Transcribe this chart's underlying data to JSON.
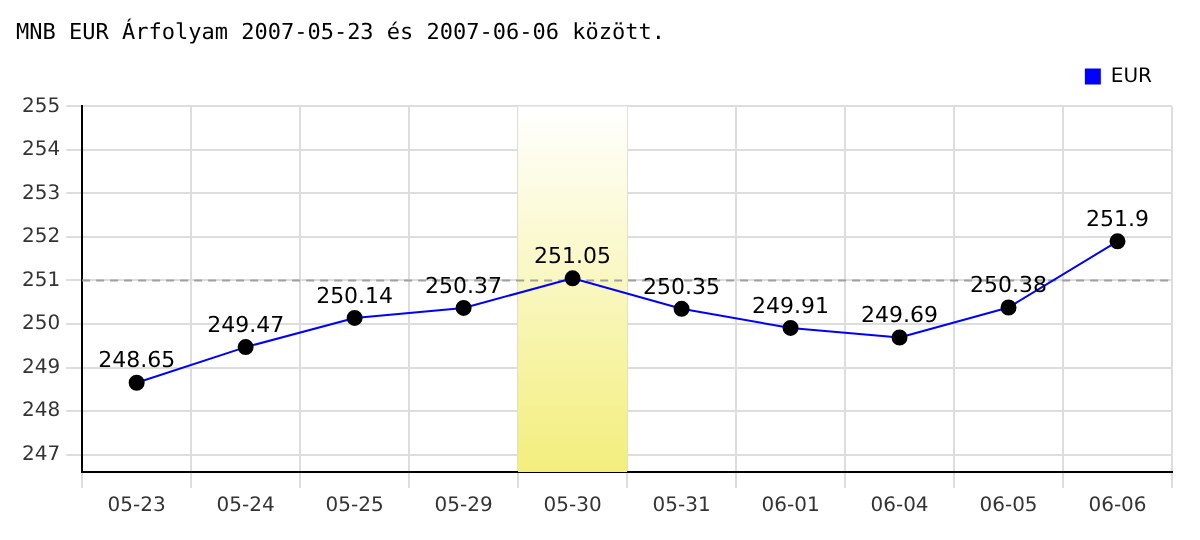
{
  "chart_data": {
    "type": "line",
    "title": "MNB EUR Árfolyam 2007-05-23 és 2007-06-06 között.",
    "categories": [
      "05-23",
      "05-24",
      "05-25",
      "05-29",
      "05-30",
      "05-31",
      "06-01",
      "06-04",
      "06-05",
      "06-06"
    ],
    "series": [
      {
        "name": "EUR",
        "color": "#0000ff",
        "values": [
          248.65,
          249.47,
          250.14,
          250.37,
          251.05,
          250.35,
          249.91,
          249.69,
          250.38,
          251.9
        ]
      }
    ],
    "ylim": [
      246.6,
      255
    ],
    "yticks": [
      247,
      248,
      249,
      250,
      251,
      252,
      253,
      254,
      255
    ],
    "ref_lines": [
      {
        "axis": "y",
        "value": 251,
        "color": "#a0a0a0",
        "line_style": "dashed"
      }
    ],
    "bands": [
      {
        "axis": "x",
        "from": "05-30",
        "to": "05-30",
        "color": "#f3ee7c"
      }
    ],
    "data_labels": true,
    "grid": true,
    "legend": "top right",
    "marker": "circle",
    "line_style": "solid"
  }
}
